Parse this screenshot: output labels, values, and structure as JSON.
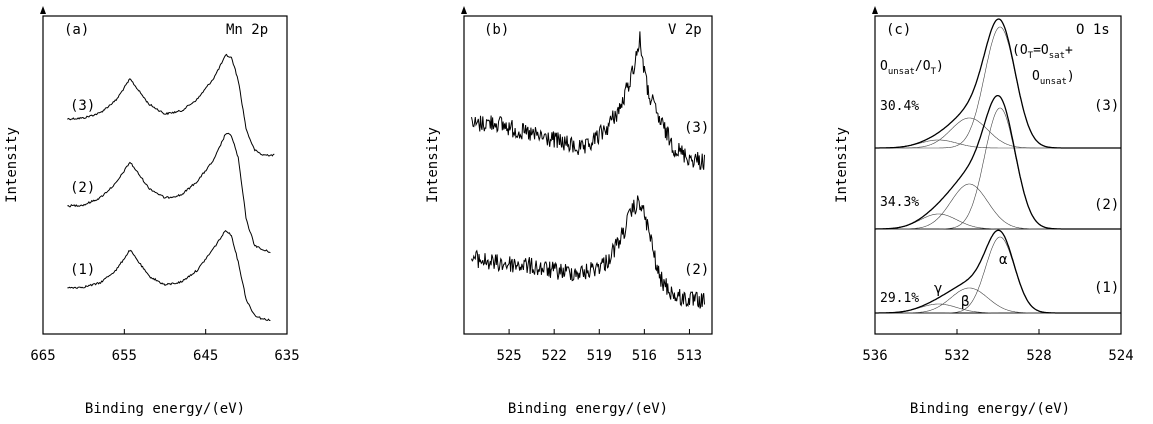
{
  "chart_data": [
    {
      "type": "line",
      "panel_label": "(a)",
      "element_label": "Mn 2p",
      "xlabel": "Binding energy/(eV)",
      "ylabel": "Intensity",
      "xlim": [
        665,
        635
      ],
      "x_reversed": true,
      "xticks": [
        "665",
        "655",
        "645",
        "635"
      ],
      "curve_labels": [
        "(3)",
        "(2)",
        "(1)"
      ],
      "series": [
        {
          "name": "(3)",
          "points": [
            [
              662,
              119
            ],
            [
              660,
              118
            ],
            [
              658,
              113
            ],
            [
              656,
              100
            ],
            [
              654.3,
              79
            ],
            [
              652,
              104
            ],
            [
              650,
              114
            ],
            [
              648,
              111
            ],
            [
              646,
              99
            ],
            [
              644,
              78
            ],
            [
              642.5,
              55
            ],
            [
              641.8,
              58
            ],
            [
              641,
              80
            ],
            [
              640,
              130
            ],
            [
              639,
              150
            ],
            [
              638,
              155
            ],
            [
              636.5,
              155
            ]
          ]
        },
        {
          "name": "(2)",
          "points": [
            [
              662,
              206
            ],
            [
              660,
              205
            ],
            [
              658,
              198
            ],
            [
              656,
              183
            ],
            [
              654.3,
              162
            ],
            [
              652,
              188
            ],
            [
              650,
              198
            ],
            [
              648,
              195
            ],
            [
              646,
              181
            ],
            [
              644,
              160
            ],
            [
              642.5,
              133
            ],
            [
              641.8,
              136
            ],
            [
              641,
              158
            ],
            [
              640,
              220
            ],
            [
              639,
              245
            ],
            [
              638,
              250
            ],
            [
              637,
              252
            ]
          ]
        },
        {
          "name": "(1)",
          "points": [
            [
              662,
              288
            ],
            [
              660,
              287
            ],
            [
              658,
              283
            ],
            [
              656,
              270
            ],
            [
              654.3,
              250
            ],
            [
              652,
              276
            ],
            [
              650,
              285
            ],
            [
              648,
              282
            ],
            [
              646,
              270
            ],
            [
              644,
              248
            ],
            [
              642.5,
              230
            ],
            [
              641.8,
              236
            ],
            [
              641,
              262
            ],
            [
              640,
              300
            ],
            [
              639,
              315
            ],
            [
              638,
              319
            ],
            [
              637,
              320
            ]
          ]
        }
      ]
    },
    {
      "type": "line",
      "panel_label": "(b)",
      "element_label": "V 2p",
      "xlabel": "Binding energy/(eV)",
      "ylabel": "Intensity",
      "xlim": [
        528,
        511.5
      ],
      "x_reversed": true,
      "xticks": [
        "525",
        "522",
        "519",
        "516",
        "513"
      ],
      "curve_labels": [
        "(3)",
        "(2)"
      ],
      "series": [
        {
          "name": "(3)",
          "points": [
            [
              527.5,
              125
            ],
            [
              526,
              122
            ],
            [
              524,
              133
            ],
            [
              522,
              140
            ],
            [
              520,
              150
            ],
            [
              518.5,
              128
            ],
            [
              517.5,
              105
            ],
            [
              516.8,
              72
            ],
            [
              516.3,
              40
            ],
            [
              515.8,
              90
            ],
            [
              515,
              120
            ],
            [
              514,
              148
            ],
            [
              513,
              158
            ],
            [
              512,
              162
            ]
          ]
        },
        {
          "name": "(2)",
          "points": [
            [
              527.5,
              258
            ],
            [
              526,
              263
            ],
            [
              524,
              265
            ],
            [
              522,
              271
            ],
            [
              520,
              273
            ],
            [
              518.5,
              262
            ],
            [
              517.5,
              236
            ],
            [
              516.8,
              210
            ],
            [
              516.3,
              202
            ],
            [
              515.8,
              225
            ],
            [
              515,
              278
            ],
            [
              514,
              296
            ],
            [
              513,
              300
            ],
            [
              512,
              302
            ]
          ]
        }
      ]
    },
    {
      "type": "line",
      "panel_label": "(c)",
      "element_label": "O 1s",
      "xlabel": "Binding energy/(eV)",
      "ylabel": "Intensity",
      "xlim": [
        536,
        524
      ],
      "x_reversed": true,
      "xticks": [
        "536",
        "532",
        "528",
        "524"
      ],
      "curve_labels": [
        "(3)",
        "(2)",
        "(1)"
      ],
      "annotations": {
        "ratio_label": "(Ounsat/OT)",
        "ratio_label_parts": {
          "O1": "O",
          "sub1": "unsat",
          "slash": "/O",
          "sub2": "T"
        },
        "formula_parts": {
          "o1": "(O",
          "s1": "T",
          "eq": "=O",
          "s2": "sat",
          "plus": "+",
          "o2": "O",
          "s3": "unsat",
          "close": ")"
        },
        "percentages": [
          "30.4%",
          "34.3%",
          "29.1%"
        ],
        "peak_alpha": "α",
        "peak_beta": "β",
        "peak_gamma": "γ"
      },
      "series": [
        {
          "name": "(3)",
          "baseline_y": 148,
          "alpha": {
            "center": 529.9,
            "height": 121,
            "sigma": 0.75
          },
          "beta": {
            "center": 531.4,
            "height": 30,
            "sigma": 0.9
          },
          "gamma": {
            "center": 532.9,
            "height": 8,
            "sigma": 0.9
          }
        },
        {
          "name": "(2)",
          "baseline_y": 229,
          "alpha": {
            "center": 529.9,
            "height": 121,
            "sigma": 0.75
          },
          "beta": {
            "center": 531.4,
            "height": 45,
            "sigma": 0.9
          },
          "gamma": {
            "center": 532.9,
            "height": 15,
            "sigma": 0.9
          }
        },
        {
          "name": "(1)",
          "baseline_y": 313,
          "alpha": {
            "center": 529.9,
            "height": 76,
            "sigma": 0.7
          },
          "beta": {
            "center": 531.4,
            "height": 25,
            "sigma": 0.9
          },
          "gamma": {
            "center": 532.9,
            "height": 9,
            "sigma": 0.9
          }
        }
      ]
    }
  ]
}
